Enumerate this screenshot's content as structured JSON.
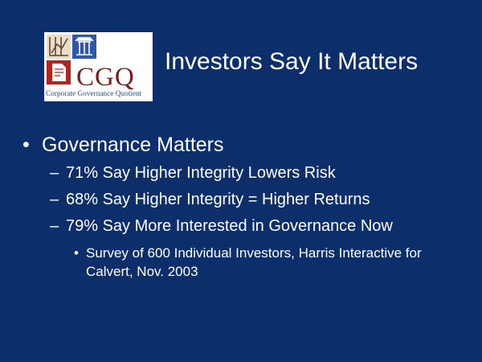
{
  "logo": {
    "text": "CGQ",
    "caption": "Corporate Governance Quotient"
  },
  "title": "Investors Say It Matters",
  "bullets": [
    {
      "text": "Governance Matters",
      "items": [
        {
          "text": "71% Say Higher Integrity Lowers Risk"
        },
        {
          "text": "68% Say Higher Integrity = Higher Returns"
        },
        {
          "text": "79% Say More Interested in Governance Now",
          "items": [
            {
              "text": "Survey of 600 Individual Investors, Harris Interactive for Calvert, Nov. 2003"
            }
          ]
        }
      ]
    }
  ]
}
